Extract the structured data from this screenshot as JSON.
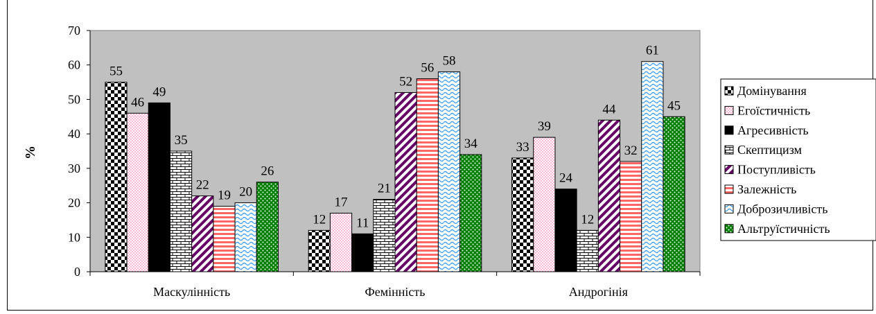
{
  "chart_data": {
    "type": "bar",
    "title": "",
    "xlabel": "",
    "ylabel": "%",
    "ylim": [
      0,
      70
    ],
    "yticks": [
      0,
      10,
      20,
      30,
      40,
      50,
      60,
      70
    ],
    "grid": false,
    "legend_position": "right",
    "categories": [
      "Маскулінність",
      "Фемінність",
      "Андрогінія"
    ],
    "series": [
      {
        "name": "Домінування",
        "values": [
          55,
          12,
          33
        ],
        "pattern": "checker"
      },
      {
        "name": "Егоїстичність",
        "values": [
          46,
          17,
          39
        ],
        "pattern": "dots"
      },
      {
        "name": "Агресивність",
        "values": [
          49,
          11,
          24
        ],
        "pattern": "solid"
      },
      {
        "name": "Скептицизм",
        "values": [
          35,
          21,
          12
        ],
        "pattern": "brick"
      },
      {
        "name": "Поступливість",
        "values": [
          22,
          52,
          44
        ],
        "pattern": "diagonal"
      },
      {
        "name": "Залежність",
        "values": [
          19,
          56,
          32
        ],
        "pattern": "hstripes"
      },
      {
        "name": "Доброзичливість",
        "values": [
          20,
          58,
          61
        ],
        "pattern": "wave"
      },
      {
        "name": "Альтруїстичність",
        "values": [
          26,
          34,
          45
        ],
        "pattern": "greendots"
      }
    ],
    "colors": {
      "plot_bg": "#c0c0c0",
      "checker": "#000000",
      "dots": "#ff99cc",
      "solid": "#000000",
      "brick": "#000000",
      "diagonal": "#660066",
      "hstripes": "#ff6666",
      "wave": "#3399ff",
      "greendots": "#008000"
    }
  }
}
